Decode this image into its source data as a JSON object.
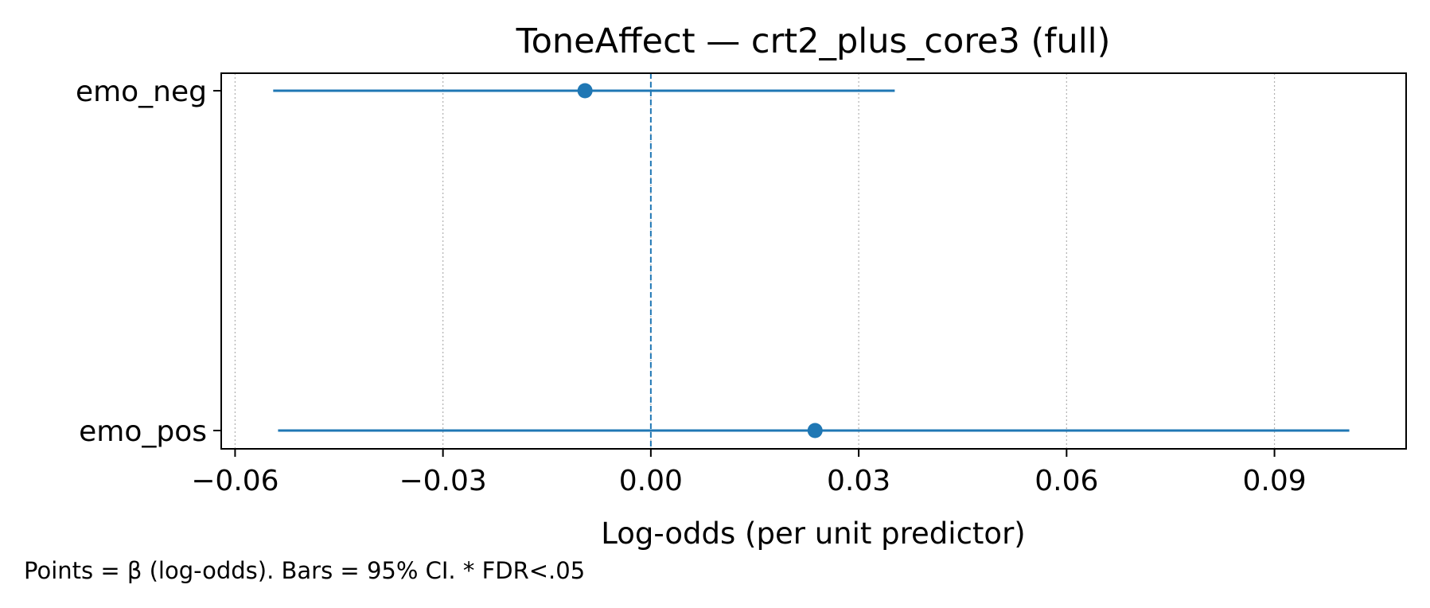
{
  "chart_data": {
    "type": "forest",
    "title": "ToneAffect — crt2_plus_core3 (full)",
    "xlabel": "Log-odds (per unit predictor)",
    "ylabel": "",
    "xlim": [
      -0.062,
      0.109
    ],
    "xticks": [
      -0.06,
      -0.03,
      0.0,
      0.03,
      0.06,
      0.09
    ],
    "xtick_labels": [
      "−0.06",
      "−0.03",
      "0.00",
      "0.03",
      "0.06",
      "0.09"
    ],
    "grid": "vertical dotted",
    "reference_line": {
      "x": 0.0,
      "style": "dashed"
    },
    "categories": [
      "emo_neg",
      "emo_pos"
    ],
    "points": [
      {
        "label": "emo_neg",
        "beta": -0.0095,
        "ci_low": -0.0545,
        "ci_high": 0.0352
      },
      {
        "label": "emo_pos",
        "beta": 0.0237,
        "ci_low": -0.0538,
        "ci_high": 0.1008
      }
    ],
    "color": "#1f77b4"
  },
  "footnote": "Points = β (log-odds). Bars = 95% CI. * FDR<.05"
}
